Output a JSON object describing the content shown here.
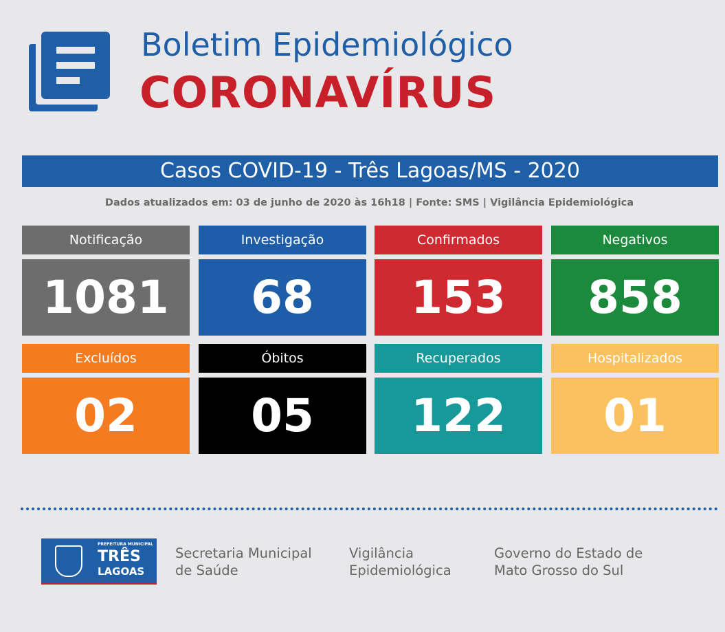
{
  "header": {
    "title": "Boletim Epidemiológico",
    "subtitle": "CORONAVÍRUS"
  },
  "banner": "Casos COVID-19 - Três Lagoas/MS - 2020",
  "updated": "Dados atualizados em: 03 de junho de 2020 às 16h18 | Fonte: SMS | Vigilância Epidemiológica",
  "cards": [
    {
      "label": "Notificação",
      "value": "1081",
      "color": "#6d6d6d"
    },
    {
      "label": "Investigação",
      "value": "68",
      "color": "#1e5ea8"
    },
    {
      "label": "Confirmados",
      "value": "153",
      "color": "#cf2a2f"
    },
    {
      "label": "Negativos",
      "value": "858",
      "color": "#1b8a3c"
    },
    {
      "label": "Excluídos",
      "value": "02",
      "color": "#f47b20"
    },
    {
      "label": "Óbitos",
      "value": "05",
      "color": "#000000"
    },
    {
      "label": "Recuperados",
      "value": "122",
      "color": "#17999a"
    },
    {
      "label": "Hospitalizados",
      "value": "01",
      "color": "#fbc15e"
    }
  ],
  "footer": {
    "logo": {
      "top": "PREFEITURA MUNICIPAL",
      "name1": "TRÊS",
      "name2": "LAGOAS"
    },
    "items": [
      [
        "Secretaria Municipal",
        "de Saúde"
      ],
      [
        "Vigilância",
        "Epidemiológica"
      ],
      [
        "Governo do Estado de",
        "Mato Grosso do Sul"
      ]
    ]
  }
}
